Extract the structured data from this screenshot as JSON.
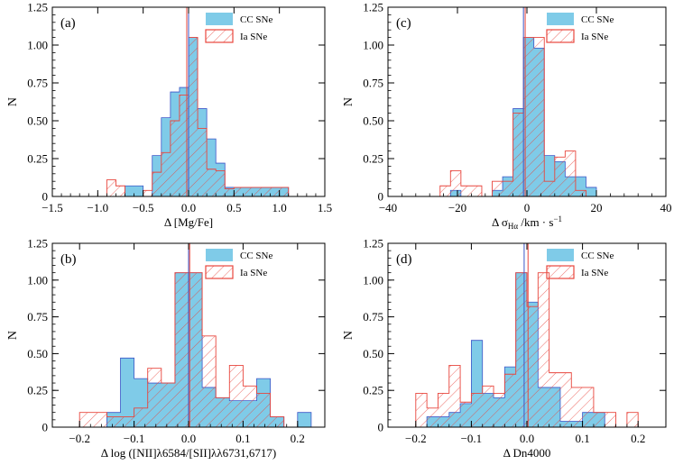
{
  "figure": {
    "legend": {
      "cc": "CC SNe",
      "ia": "Ia SNe"
    },
    "colors": {
      "cc_fill": "#7fcbe8",
      "cc_edge": "#3c56c7",
      "ia": "#e8453c",
      "axis": "#000000"
    }
  },
  "chart_data": [
    {
      "type": "histogram",
      "panel_label": "(a)",
      "xlabel": "Δ [Mg/Fe]",
      "ylabel": "N",
      "xlim": [
        -1.5,
        1.5
      ],
      "ylim": [
        0,
        1.25
      ],
      "xticks": [
        -1.5,
        -1.0,
        -0.5,
        0.0,
        0.5,
        1.0,
        1.5
      ],
      "xtick_labels": [
        "−1.5",
        "−1.0",
        "−0.5",
        "0.0",
        "0.5",
        "1.0",
        "1.5"
      ],
      "yticks": [
        0,
        0.25,
        0.5,
        0.75,
        1.0,
        1.25
      ],
      "ytick_labels": [
        "0",
        "0.25",
        "0.50",
        "0.75",
        "1.00",
        "1.25"
      ],
      "bin_edges": [
        -0.9,
        -0.8,
        -0.7,
        -0.6,
        -0.5,
        -0.4,
        -0.3,
        -0.2,
        -0.1,
        0.0,
        0.1,
        0.2,
        0.3,
        0.4,
        0.5,
        0.6,
        0.7,
        0.8,
        0.9,
        1.0,
        1.1
      ],
      "series": [
        {
          "name": "CC SNe",
          "values": [
            0,
            0,
            0.07,
            0.07,
            0,
            0.27,
            0.52,
            0.69,
            0.72,
            1.05,
            0.58,
            0.38,
            0.22,
            0.06,
            0.06,
            0.06,
            0.06,
            0.06,
            0.06,
            0.06
          ],
          "median": 0.0
        },
        {
          "name": "Ia SNe",
          "values": [
            0.11,
            0.07,
            0,
            0,
            0.04,
            0.16,
            0.29,
            0.5,
            0.67,
            1.05,
            0.45,
            0.18,
            0.17,
            0.05,
            0.06,
            0.06,
            0.06,
            0.06,
            0.06,
            0.06
          ],
          "median": -0.02
        }
      ]
    },
    {
      "type": "histogram",
      "panel_label": "(c)",
      "xlabel": "Δ σ",
      "xlabel_sub": "Hα",
      "xlabel_tail": "/km · s",
      "xlabel_sup": "−1",
      "ylabel": "N",
      "xlim": [
        -40,
        40
      ],
      "ylim": [
        0,
        1.25
      ],
      "xticks": [
        -40,
        -20,
        0,
        20,
        40
      ],
      "xtick_labels": [
        "−40",
        "−20",
        "0",
        "20",
        "40"
      ],
      "yticks": [
        0,
        0.25,
        0.5,
        0.75,
        1.0,
        1.25
      ],
      "ytick_labels": [
        "0",
        "0.25",
        "0.50",
        "0.75",
        "1.00",
        "1.25"
      ],
      "bin_edges": [
        -28,
        -25,
        -22,
        -19,
        -16,
        -13,
        -10,
        -7,
        -4,
        -1,
        2,
        5,
        8,
        11,
        14,
        17,
        20
      ],
      "series": [
        {
          "name": "CC SNe",
          "values": [
            0,
            0,
            0.04,
            0,
            0,
            0,
            0.04,
            0.13,
            0.58,
            1.05,
            0.98,
            0.27,
            0.23,
            0.13,
            0.13,
            0.06
          ],
          "median": -1.0
        },
        {
          "name": "Ia SNe",
          "values": [
            0,
            0.07,
            0.17,
            0.07,
            0.07,
            0,
            0.1,
            0.1,
            0.55,
            1.05,
            1.05,
            0.1,
            0.26,
            0.3,
            0.04,
            0
          ],
          "median": -0.5
        }
      ]
    },
    {
      "type": "histogram",
      "panel_label": "(b)",
      "xlabel": "Δ log ([NII]λ6584/[SII]λλ6731,6717)",
      "ylabel": "N",
      "xlim": [
        -0.25,
        0.25
      ],
      "ylim": [
        0,
        1.25
      ],
      "xticks": [
        -0.2,
        -0.1,
        0.0,
        0.1,
        0.2
      ],
      "xtick_labels": [
        "−0.2",
        "−0.1",
        "0.0",
        "0.1",
        "0.2"
      ],
      "yticks": [
        0,
        0.25,
        0.5,
        0.75,
        1.0,
        1.25
      ],
      "ytick_labels": [
        "0",
        "0.25",
        "0.50",
        "0.75",
        "1.00",
        "1.25"
      ],
      "bin_edges": [
        -0.2,
        -0.175,
        -0.15,
        -0.125,
        -0.1,
        -0.075,
        -0.05,
        -0.025,
        0.0,
        0.025,
        0.05,
        0.075,
        0.1,
        0.125,
        0.15,
        0.175,
        0.2,
        0.225
      ],
      "series": [
        {
          "name": "CC SNe",
          "values": [
            0,
            0,
            0.1,
            0.47,
            0.33,
            0.3,
            0.3,
            1.05,
            1.05,
            0.27,
            0.2,
            0.18,
            0.18,
            0.33,
            0.07,
            0,
            0.1
          ],
          "median": 0.0
        },
        {
          "name": "Ia SNe",
          "values": [
            0.1,
            0.1,
            0.07,
            0.07,
            0.13,
            0.4,
            0.3,
            1.05,
            1.05,
            0.62,
            0.2,
            0.42,
            0.28,
            0.23,
            0.07,
            0,
            0
          ],
          "median": 0.002
        }
      ]
    },
    {
      "type": "histogram",
      "panel_label": "(d)",
      "xlabel": "Δ Dn4000",
      "ylabel": "N",
      "xlim": [
        -0.25,
        0.25
      ],
      "ylim": [
        0,
        1.25
      ],
      "xticks": [
        -0.2,
        -0.1,
        0.0,
        0.1,
        0.2
      ],
      "xtick_labels": [
        "−0.2",
        "−0.1",
        "0.0",
        "0.1",
        "0.2"
      ],
      "yticks": [
        0,
        0.25,
        0.5,
        0.75,
        1.0,
        1.25
      ],
      "ytick_labels": [
        "0",
        "0.25",
        "0.50",
        "0.75",
        "1.00",
        "1.25"
      ],
      "bin_edges": [
        -0.2,
        -0.18,
        -0.16,
        -0.14,
        -0.12,
        -0.1,
        -0.08,
        -0.06,
        -0.04,
        -0.02,
        0.0,
        0.02,
        0.04,
        0.06,
        0.08,
        0.1,
        0.12,
        0.14,
        0.16,
        0.18,
        0.2,
        0.22
      ],
      "series": [
        {
          "name": "CC SNe",
          "values": [
            0,
            0.07,
            0.07,
            0.1,
            0.16,
            0.59,
            0.23,
            0.2,
            0.41,
            1.05,
            0.85,
            0.27,
            0.27,
            0.04,
            0.04,
            0.1,
            0.1,
            0,
            0,
            0,
            0
          ],
          "median": -0.005
        },
        {
          "name": "Ia SNe",
          "values": [
            0.23,
            0.13,
            0.23,
            0.42,
            0.17,
            0.23,
            0.28,
            0.23,
            0.36,
            1.05,
            0.82,
            1.05,
            0.37,
            0.37,
            0.27,
            0.27,
            0.1,
            0.1,
            0,
            0.1,
            0
          ],
          "median": 0.002
        }
      ]
    }
  ]
}
